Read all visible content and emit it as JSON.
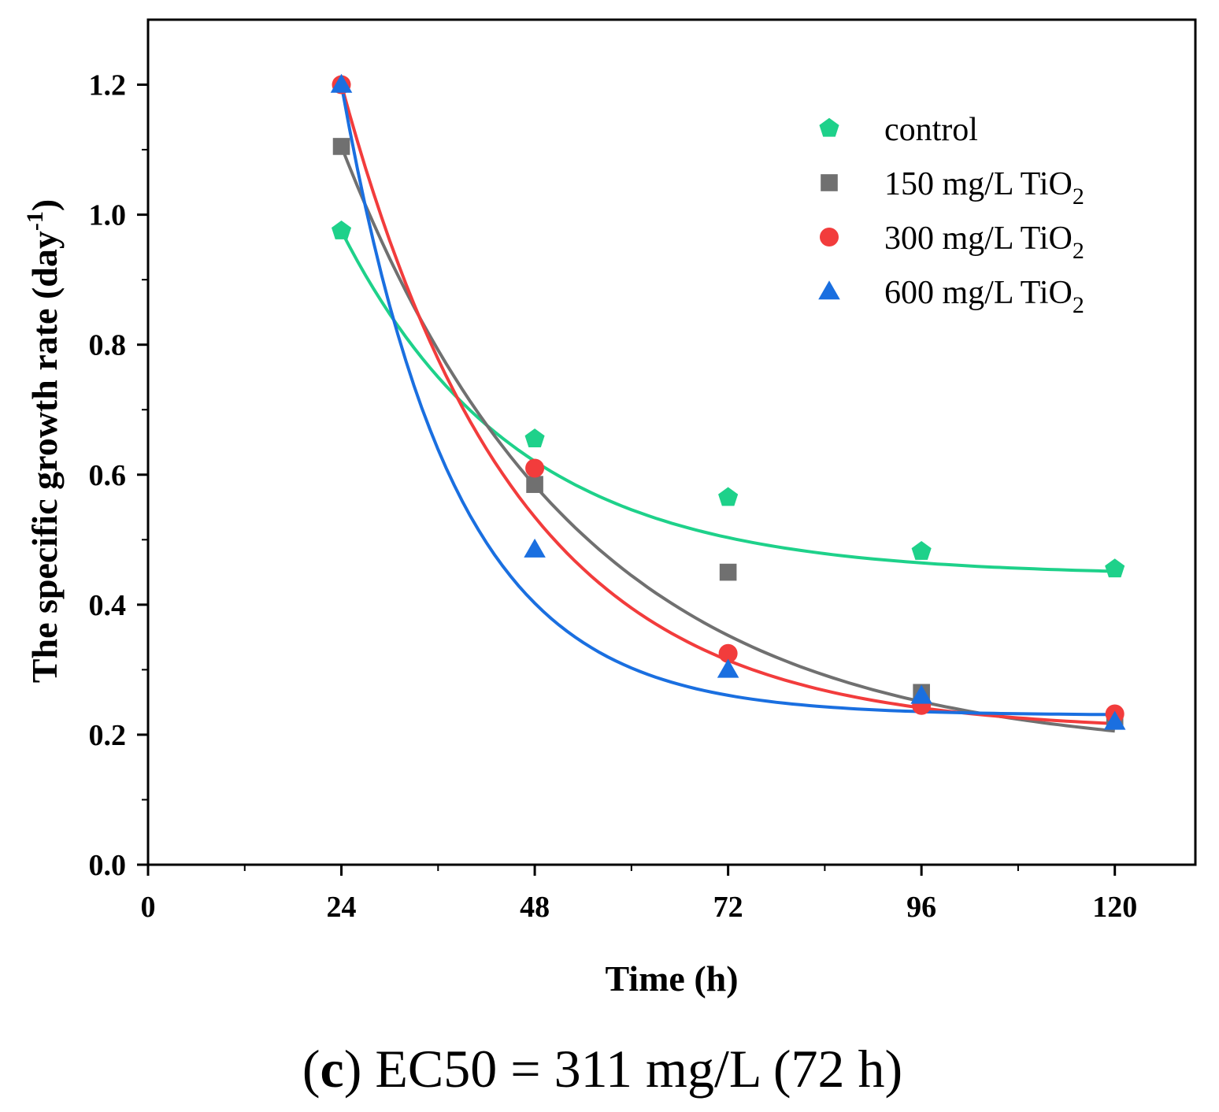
{
  "chart_data": {
    "type": "scatter",
    "xlabel": "Time (h)",
    "ylabel_main": "The specific growth rate (day",
    "ylabel_sup": "-1",
    "ylabel_close": ")",
    "xlim": [
      0,
      130
    ],
    "ylim": [
      0,
      1.3
    ],
    "xticks": [
      0,
      24,
      48,
      72,
      96,
      120
    ],
    "x_tick_labels": [
      "0",
      "24",
      "48",
      "72",
      "96",
      "120"
    ],
    "yticks": [
      0.0,
      0.2,
      0.4,
      0.6,
      0.8,
      1.0,
      1.2
    ],
    "y_tick_labels": [
      "0.0",
      "0.2",
      "0.4",
      "0.6",
      "0.8",
      "1.0",
      "1.2"
    ],
    "legend_position": "top-right",
    "series": [
      {
        "name": "control",
        "label_main": "control",
        "label_sub": "",
        "marker": "pentagon",
        "color": "#1ed18a",
        "x": [
          24,
          48,
          72,
          96,
          120
        ],
        "y": [
          0.975,
          0.655,
          0.565,
          0.482,
          0.455
        ],
        "fit": {
          "A": 0.445,
          "B": 0.53,
          "k": 0.046
        }
      },
      {
        "name": "150 mg/L TiO2",
        "label_main": "150 mg/L TiO",
        "label_sub": "2",
        "marker": "square",
        "color": "#707070",
        "x": [
          24,
          48,
          72,
          96,
          120
        ],
        "y": [
          1.105,
          0.585,
          0.45,
          0.265,
          0.225
        ],
        "fit": {
          "A": 0.17,
          "B": 0.935,
          "k": 0.034
        }
      },
      {
        "name": "300 mg/L TiO2",
        "label_main": "300 mg/L TiO",
        "label_sub": "2",
        "marker": "circle",
        "color": "#f23c3c",
        "x": [
          24,
          48,
          72,
          96,
          120
        ],
        "y": [
          1.2,
          0.61,
          0.325,
          0.245,
          0.232
        ],
        "fit": {
          "A": 0.205,
          "B": 0.995,
          "k": 0.046
        }
      },
      {
        "name": "600 mg/L TiO2",
        "label_main": "600 mg/L TiO",
        "label_sub": "2",
        "marker": "triangle",
        "color": "#1a6fe0",
        "x": [
          24,
          48,
          72,
          96,
          120
        ],
        "y": [
          1.2,
          0.485,
          0.3,
          0.26,
          0.22
        ],
        "fit": {
          "A": 0.23,
          "B": 0.97,
          "k": 0.072
        }
      }
    ]
  },
  "caption": {
    "open": "(",
    "letter": "c",
    "rest": ") EC50 = 311 mg/L (72 h)"
  }
}
